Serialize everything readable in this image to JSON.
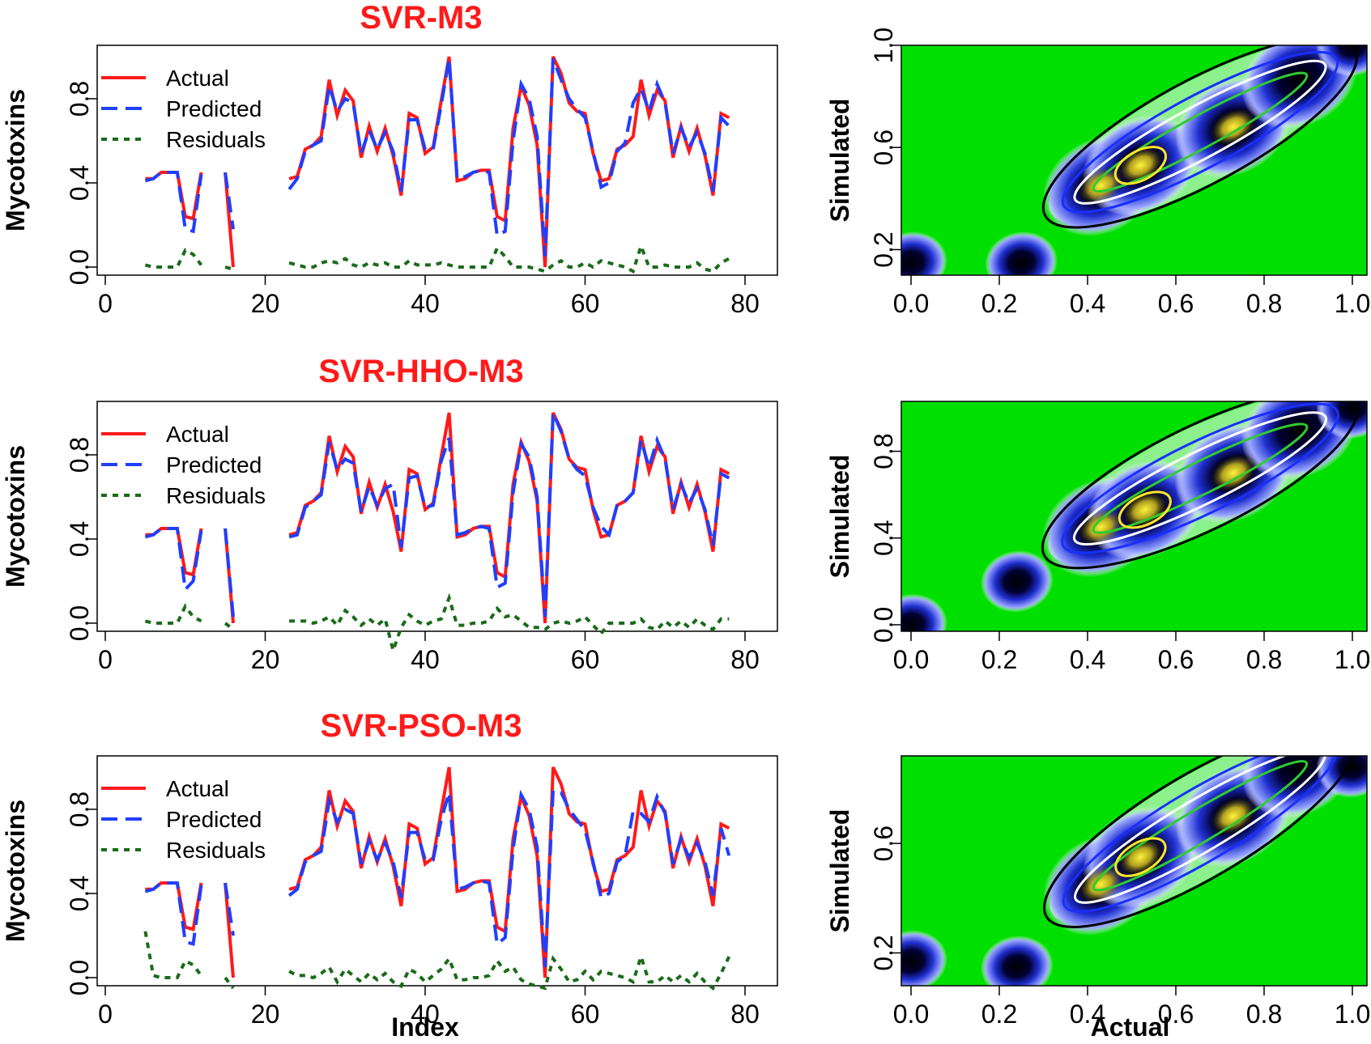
{
  "colors": {
    "actual": "#ff1a1a",
    "predicted": "#1f3fff",
    "residuals": "#1a6b1a",
    "title": "#ff1a1a",
    "density_bg": "#00e000"
  },
  "chart_data": [
    {
      "type": "line",
      "title": "SVR-M3",
      "xlabel": "",
      "ylabel": "Mycotoxins",
      "xlim": [
        0,
        80
      ],
      "ylim": [
        0,
        1
      ],
      "xticks": [
        "0",
        "20",
        "40",
        "60",
        "80"
      ],
      "yticks": [
        "0.0",
        "0.4",
        "0.8"
      ],
      "legend": [
        "Actual",
        "Predicted",
        "Residuals"
      ],
      "x": [
        5,
        6,
        7,
        8,
        9,
        10,
        11,
        12,
        15,
        16,
        23,
        24,
        25,
        26,
        27,
        28,
        29,
        30,
        31,
        32,
        33,
        34,
        35,
        36,
        37,
        38,
        39,
        40,
        41,
        42,
        43,
        44,
        45,
        46,
        47,
        48,
        49,
        50,
        51,
        52,
        53,
        54,
        55,
        56,
        57,
        58,
        59,
        60,
        61,
        62,
        63,
        64,
        65,
        66,
        67,
        68,
        69,
        70,
        71,
        72,
        73,
        74,
        75,
        76,
        77,
        78
      ],
      "series": [
        {
          "name": "Actual",
          "values": [
            0.42,
            0.42,
            0.45,
            0.45,
            0.45,
            0.24,
            0.23,
            0.45,
            0.45,
            0.0,
            0.42,
            0.43,
            0.56,
            0.58,
            0.62,
            0.89,
            0.72,
            0.84,
            0.79,
            0.52,
            0.67,
            0.55,
            0.66,
            0.53,
            0.34,
            0.73,
            0.71,
            0.54,
            0.57,
            0.79,
            1.0,
            0.41,
            0.42,
            0.45,
            0.46,
            0.46,
            0.24,
            0.22,
            0.66,
            0.86,
            0.77,
            0.58,
            0.0,
            1.0,
            0.92,
            0.78,
            0.74,
            0.73,
            0.54,
            0.41,
            0.42,
            0.56,
            0.58,
            0.62,
            0.89,
            0.72,
            0.84,
            0.79,
            0.52,
            0.67,
            0.55,
            0.66,
            0.53,
            0.34,
            0.73,
            0.71
          ]
        },
        {
          "name": "Predicted",
          "values": [
            0.41,
            0.42,
            0.45,
            0.45,
            0.45,
            0.18,
            0.17,
            0.44,
            0.45,
            0.18,
            0.37,
            0.42,
            0.55,
            0.58,
            0.6,
            0.86,
            0.74,
            0.8,
            0.78,
            0.54,
            0.65,
            0.56,
            0.64,
            0.55,
            0.36,
            0.7,
            0.7,
            0.56,
            0.56,
            0.77,
            0.99,
            0.42,
            0.43,
            0.45,
            0.46,
            0.45,
            0.15,
            0.17,
            0.6,
            0.87,
            0.8,
            0.62,
            0.05,
            0.99,
            0.89,
            0.8,
            0.75,
            0.71,
            0.55,
            0.38,
            0.4,
            0.55,
            0.59,
            0.78,
            0.85,
            0.74,
            0.87,
            0.78,
            0.54,
            0.66,
            0.57,
            0.64,
            0.54,
            0.36,
            0.71,
            0.67
          ]
        },
        {
          "name": "Residuals",
          "values": [
            0.01,
            0.0,
            0.0,
            0.0,
            0.0,
            0.08,
            0.06,
            0.01,
            0.0,
            -0.01,
            0.02,
            0.01,
            0.0,
            0.0,
            0.02,
            0.03,
            0.02,
            0.04,
            0.01,
            0.0,
            0.02,
            0.01,
            0.02,
            0.0,
            0.0,
            0.03,
            0.01,
            0.01,
            0.01,
            0.02,
            0.01,
            0.0,
            0.0,
            0.0,
            0.0,
            0.0,
            0.09,
            0.05,
            0.0,
            0.0,
            0.0,
            -0.01,
            -0.02,
            0.01,
            0.03,
            0.0,
            0.0,
            0.02,
            0.0,
            0.03,
            0.02,
            0.01,
            0.0,
            -0.02,
            0.1,
            0.0,
            0.0,
            0.01,
            0.0,
            0.0,
            0.0,
            0.02,
            -0.01,
            -0.02,
            0.02,
            0.04
          ]
        }
      ]
    },
    {
      "type": "heatmap",
      "title": "",
      "xlabel": "",
      "ylabel": "Simulated",
      "xlim": [
        0,
        1
      ],
      "ylim": [
        0.1,
        1.0
      ],
      "xticks": [
        "0.0",
        "0.2",
        "0.4",
        "0.6",
        "0.8",
        "1.0"
      ],
      "yticks": [
        "0.2",
        "0.6",
        "1.0"
      ],
      "density_peaks": [
        [
          0.43,
          0.45
        ],
        [
          0.52,
          0.53
        ],
        [
          0.73,
          0.68
        ],
        [
          0.88,
          0.87
        ],
        [
          0.0,
          0.15
        ],
        [
          0.25,
          0.15
        ],
        [
          1.0,
          1.0
        ]
      ]
    },
    {
      "type": "line",
      "title": "SVR-HHO-M3",
      "xlabel": "",
      "ylabel": "Mycotoxins",
      "xlim": [
        0,
        80
      ],
      "ylim": [
        0,
        1
      ],
      "xticks": [
        "0",
        "20",
        "40",
        "60",
        "80"
      ],
      "yticks": [
        "0.0",
        "0.4",
        "0.8"
      ],
      "legend": [
        "Actual",
        "Predicted",
        "Residuals"
      ],
      "x": [
        5,
        6,
        7,
        8,
        9,
        10,
        11,
        12,
        15,
        16,
        23,
        24,
        25,
        26,
        27,
        28,
        29,
        30,
        31,
        32,
        33,
        34,
        35,
        36,
        37,
        38,
        39,
        40,
        41,
        42,
        43,
        44,
        45,
        46,
        47,
        48,
        49,
        50,
        51,
        52,
        53,
        54,
        55,
        56,
        57,
        58,
        59,
        60,
        61,
        62,
        63,
        64,
        65,
        66,
        67,
        68,
        69,
        70,
        71,
        72,
        73,
        74,
        75,
        76,
        77,
        78
      ],
      "series": [
        {
          "name": "Actual",
          "values": [
            0.42,
            0.42,
            0.45,
            0.45,
            0.45,
            0.24,
            0.23,
            0.45,
            0.45,
            0.0,
            0.42,
            0.43,
            0.56,
            0.58,
            0.62,
            0.89,
            0.72,
            0.84,
            0.79,
            0.52,
            0.67,
            0.55,
            0.66,
            0.53,
            0.34,
            0.73,
            0.71,
            0.54,
            0.57,
            0.79,
            1.0,
            0.41,
            0.42,
            0.45,
            0.46,
            0.46,
            0.24,
            0.22,
            0.66,
            0.86,
            0.77,
            0.58,
            0.0,
            1.0,
            0.92,
            0.78,
            0.74,
            0.73,
            0.54,
            0.41,
            0.42,
            0.56,
            0.58,
            0.62,
            0.89,
            0.72,
            0.84,
            0.79,
            0.52,
            0.67,
            0.55,
            0.66,
            0.53,
            0.34,
            0.73,
            0.71
          ]
        },
        {
          "name": "Predicted",
          "values": [
            0.41,
            0.42,
            0.45,
            0.45,
            0.45,
            0.16,
            0.2,
            0.44,
            0.45,
            0.03,
            0.41,
            0.42,
            0.55,
            0.58,
            0.61,
            0.86,
            0.73,
            0.78,
            0.76,
            0.53,
            0.65,
            0.56,
            0.64,
            0.66,
            0.36,
            0.69,
            0.7,
            0.55,
            0.56,
            0.77,
            0.88,
            0.42,
            0.43,
            0.45,
            0.46,
            0.45,
            0.17,
            0.19,
            0.62,
            0.85,
            0.79,
            0.6,
            0.03,
            1.0,
            0.91,
            0.78,
            0.73,
            0.7,
            0.55,
            0.46,
            0.42,
            0.56,
            0.58,
            0.62,
            0.87,
            0.74,
            0.87,
            0.78,
            0.54,
            0.66,
            0.57,
            0.64,
            0.54,
            0.37,
            0.71,
            0.69
          ]
        },
        {
          "name": "Residuals",
          "values": [
            0.01,
            0.0,
            0.0,
            0.0,
            0.0,
            0.08,
            0.03,
            0.01,
            0.0,
            -0.03,
            0.01,
            0.01,
            0.01,
            0.0,
            0.01,
            0.03,
            -0.01,
            0.06,
            0.03,
            -0.01,
            0.02,
            -0.01,
            0.02,
            -0.13,
            -0.02,
            0.04,
            0.01,
            -0.01,
            0.01,
            0.02,
            0.12,
            -0.01,
            -0.01,
            0.0,
            0.0,
            0.01,
            0.07,
            0.03,
            0.04,
            0.01,
            -0.02,
            -0.02,
            -0.03,
            0.0,
            0.01,
            0.0,
            0.01,
            0.03,
            -0.01,
            -0.05,
            0.0,
            0.0,
            0.0,
            0.0,
            0.02,
            -0.02,
            -0.03,
            0.01,
            -0.02,
            0.01,
            -0.02,
            0.02,
            -0.01,
            -0.03,
            0.02,
            0.02
          ]
        }
      ]
    },
    {
      "type": "heatmap",
      "title": "",
      "xlabel": "",
      "ylabel": "Simulated",
      "xlim": [
        0,
        1
      ],
      "ylim": [
        -0.03,
        1.03
      ],
      "xticks": [
        "0.0",
        "0.2",
        "0.4",
        "0.6",
        "0.8",
        "1.0"
      ],
      "yticks": [
        "0.0",
        "0.4",
        "0.8"
      ],
      "density_peaks": [
        [
          0.43,
          0.45
        ],
        [
          0.53,
          0.53
        ],
        [
          0.73,
          0.7
        ],
        [
          0.88,
          0.9
        ],
        [
          0.0,
          0.0
        ],
        [
          0.24,
          0.2
        ],
        [
          1.0,
          1.0
        ]
      ]
    },
    {
      "type": "line",
      "title": "SVR-PSO-M3",
      "xlabel": "Index",
      "ylabel": "Mycotoxins",
      "xlim": [
        0,
        80
      ],
      "ylim": [
        0,
        1
      ],
      "xticks": [
        "0",
        "20",
        "40",
        "60",
        "80"
      ],
      "yticks": [
        "0.0",
        "0.4",
        "0.8"
      ],
      "legend": [
        "Actual",
        "Predicted",
        "Residuals"
      ],
      "x": [
        5,
        6,
        7,
        8,
        9,
        10,
        11,
        12,
        15,
        16,
        23,
        24,
        25,
        26,
        27,
        28,
        29,
        30,
        31,
        32,
        33,
        34,
        35,
        36,
        37,
        38,
        39,
        40,
        41,
        42,
        43,
        44,
        45,
        46,
        47,
        48,
        49,
        50,
        51,
        52,
        53,
        54,
        55,
        56,
        57,
        58,
        59,
        60,
        61,
        62,
        63,
        64,
        65,
        66,
        67,
        68,
        69,
        70,
        71,
        72,
        73,
        74,
        75,
        76,
        77,
        78
      ],
      "series": [
        {
          "name": "Actual",
          "values": [
            0.42,
            0.42,
            0.45,
            0.45,
            0.45,
            0.24,
            0.23,
            0.45,
            0.45,
            0.0,
            0.42,
            0.43,
            0.56,
            0.58,
            0.62,
            0.89,
            0.72,
            0.84,
            0.79,
            0.52,
            0.67,
            0.55,
            0.66,
            0.53,
            0.34,
            0.73,
            0.71,
            0.54,
            0.57,
            0.79,
            1.0,
            0.41,
            0.42,
            0.45,
            0.46,
            0.46,
            0.24,
            0.22,
            0.66,
            0.86,
            0.77,
            0.58,
            0.0,
            1.0,
            0.92,
            0.78,
            0.74,
            0.73,
            0.54,
            0.41,
            0.42,
            0.56,
            0.58,
            0.62,
            0.89,
            0.72,
            0.84,
            0.79,
            0.52,
            0.67,
            0.55,
            0.66,
            0.53,
            0.34,
            0.73,
            0.71
          ]
        },
        {
          "name": "Predicted",
          "values": [
            0.41,
            0.42,
            0.45,
            0.45,
            0.45,
            0.17,
            0.16,
            0.44,
            0.45,
            0.2,
            0.39,
            0.42,
            0.55,
            0.58,
            0.6,
            0.84,
            0.74,
            0.8,
            0.78,
            0.54,
            0.65,
            0.56,
            0.64,
            0.55,
            0.38,
            0.69,
            0.69,
            0.56,
            0.56,
            0.75,
            0.88,
            0.42,
            0.43,
            0.45,
            0.46,
            0.45,
            0.16,
            0.19,
            0.61,
            0.87,
            0.8,
            0.62,
            0.05,
            0.89,
            0.88,
            0.8,
            0.75,
            0.7,
            0.55,
            0.38,
            0.4,
            0.55,
            0.58,
            0.79,
            0.78,
            0.74,
            0.86,
            0.78,
            0.54,
            0.66,
            0.57,
            0.64,
            0.55,
            0.39,
            0.71,
            0.58
          ]
        },
        {
          "name": "Residuals",
          "values": [
            0.22,
            0.01,
            0.0,
            0.0,
            0.0,
            0.08,
            0.06,
            0.01,
            0.0,
            -0.05,
            0.03,
            0.01,
            0.01,
            0.0,
            0.02,
            0.05,
            -0.02,
            0.04,
            0.01,
            -0.02,
            0.02,
            -0.01,
            0.02,
            -0.02,
            -0.04,
            0.04,
            0.02,
            -0.02,
            0.01,
            0.04,
            0.09,
            -0.01,
            -0.01,
            0.0,
            0.0,
            0.01,
            0.08,
            0.03,
            0.05,
            -0.01,
            -0.03,
            -0.04,
            -0.05,
            0.09,
            0.04,
            -0.02,
            -0.01,
            0.03,
            -0.01,
            0.03,
            0.02,
            0.01,
            0.0,
            -0.02,
            0.1,
            -0.02,
            -0.02,
            0.01,
            -0.02,
            0.01,
            -0.02,
            0.02,
            -0.02,
            -0.05,
            0.02,
            0.1
          ]
        }
      ]
    },
    {
      "type": "heatmap",
      "title": "",
      "xlabel": "Actual",
      "ylabel": "Simulated",
      "xlim": [
        0,
        1
      ],
      "ylim": [
        0.08,
        0.92
      ],
      "xticks": [
        "0.0",
        "0.2",
        "0.4",
        "0.6",
        "0.8",
        "1.0"
      ],
      "yticks": [
        "0.2",
        "0.6"
      ],
      "density_peaks": [
        [
          0.43,
          0.45
        ],
        [
          0.52,
          0.55
        ],
        [
          0.73,
          0.7
        ],
        [
          0.88,
          0.88
        ],
        [
          0.0,
          0.17
        ],
        [
          0.24,
          0.15
        ],
        [
          1.0,
          0.88
        ]
      ]
    }
  ]
}
